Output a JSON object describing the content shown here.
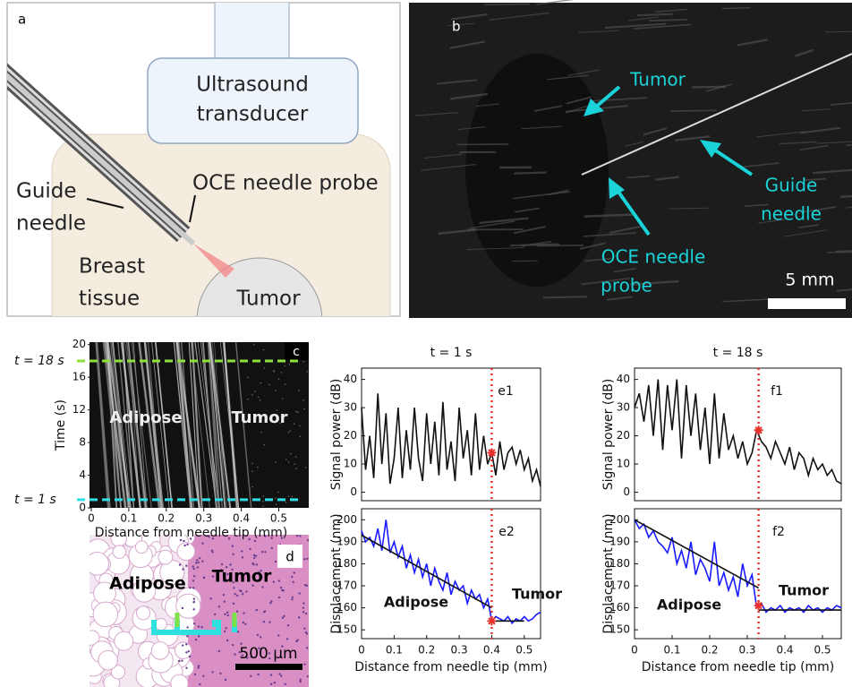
{
  "panels": {
    "a": {
      "label": "a",
      "transducer": [
        "Ultrasound",
        "transducer"
      ],
      "probe": "OCE needle probe",
      "guide": [
        "Guide",
        "needle"
      ],
      "tissue": [
        "Breast",
        "tissue"
      ],
      "tumor": "Tumor"
    },
    "b": {
      "label": "b",
      "tumor": "Tumor",
      "guide": [
        "Guide",
        "needle"
      ],
      "probe": [
        "OCE needle",
        "probe"
      ],
      "scale": "5 mm"
    },
    "d": {
      "label": "d",
      "adipose": "Adipose",
      "tumor": "Tumor",
      "scale": "500 μm"
    }
  },
  "chart_data": [
    {
      "type": "image",
      "panel": "c",
      "ylabel": "Time (s)",
      "xlabel": "Distance from needle tip (mm)",
      "xlim": [
        0,
        0.58
      ],
      "ylim": [
        0,
        20.3
      ],
      "xticks": [
        0,
        0.1,
        0.2,
        0.3,
        0.4,
        0.5
      ],
      "yticks": [
        0,
        4,
        8,
        12,
        16,
        20
      ],
      "hlines": [
        {
          "value": 18,
          "label": "t = 18 s",
          "color": "#8ee03a"
        },
        {
          "value": 1,
          "label": "t = 1 s",
          "color": "#2ee0e6"
        }
      ],
      "annotations": [
        "Adipose",
        "Tumor"
      ]
    },
    {
      "type": "line",
      "panel": "e1",
      "title": "t = 1 s",
      "ylabel": "Signal power (dB)",
      "xlim": [
        0,
        0.55
      ],
      "ylim": [
        -3,
        44
      ],
      "yticks": [
        0,
        10,
        20,
        30,
        40
      ],
      "x": [
        0,
        0.0125,
        0.025,
        0.0375,
        0.05,
        0.0625,
        0.075,
        0.0875,
        0.1,
        0.1125,
        0.125,
        0.1375,
        0.15,
        0.1625,
        0.175,
        0.1875,
        0.2,
        0.2125,
        0.225,
        0.2375,
        0.25,
        0.2625,
        0.275,
        0.2875,
        0.3,
        0.3125,
        0.325,
        0.3375,
        0.35,
        0.3625,
        0.375,
        0.3875,
        0.4,
        0.4125,
        0.425,
        0.4375,
        0.45,
        0.4625,
        0.475,
        0.4875,
        0.5,
        0.5125,
        0.525,
        0.5375,
        0.55
      ],
      "series": [
        {
          "color": "#111111",
          "values": [
            30,
            8,
            20,
            5,
            35,
            10,
            28,
            3,
            12,
            30,
            5,
            22,
            8,
            30,
            12,
            4,
            28,
            10,
            25,
            6,
            32,
            8,
            18,
            4,
            30,
            12,
            22,
            6,
            28,
            8,
            20,
            10,
            14,
            6,
            18,
            8,
            14,
            16,
            10,
            15,
            8,
            12,
            4,
            8,
            2
          ]
        }
      ],
      "vline": 0.4,
      "vline_color": "#e8322b",
      "marker": {
        "x": 0.4,
        "y": 14
      },
      "annotations": []
    },
    {
      "type": "line",
      "panel": "e2",
      "ylabel": "Displacement (nm)",
      "xlabel": "Distance from needle tip (mm)",
      "xlim": [
        0,
        0.55
      ],
      "ylim": [
        146,
        205
      ],
      "yticks": [
        150,
        160,
        170,
        180,
        190,
        200
      ],
      "xticks": [
        0,
        0.1,
        0.2,
        0.3,
        0.4,
        0.5
      ],
      "x": [
        0,
        0.0125,
        0.025,
        0.0375,
        0.05,
        0.0625,
        0.075,
        0.0875,
        0.1,
        0.1125,
        0.125,
        0.1375,
        0.15,
        0.1625,
        0.175,
        0.1875,
        0.2,
        0.2125,
        0.225,
        0.2375,
        0.25,
        0.2625,
        0.275,
        0.2875,
        0.3,
        0.3125,
        0.325,
        0.3375,
        0.35,
        0.3625,
        0.375,
        0.3875,
        0.4,
        0.4125,
        0.425,
        0.4375,
        0.45,
        0.4625,
        0.475,
        0.4875,
        0.5,
        0.5125,
        0.525,
        0.5375,
        0.55
      ],
      "series": [
        {
          "color": "#1a1aff",
          "values": [
            195,
            190,
            192,
            188,
            196,
            186,
            200,
            185,
            190,
            183,
            188,
            178,
            184,
            176,
            182,
            174,
            180,
            170,
            178,
            172,
            168,
            176,
            166,
            172,
            168,
            170,
            162,
            168,
            164,
            166,
            160,
            164,
            154,
            156,
            155,
            154,
            156,
            153,
            155,
            154,
            156,
            154,
            155,
            157,
            158
          ]
        }
      ],
      "fits": [
        {
          "x": [
            0,
            0.4
          ],
          "y": [
            193,
            160
          ]
        },
        {
          "x": [
            0.4,
            0.5
          ],
          "y": [
            154,
            154
          ]
        }
      ],
      "fit_color": "#111111",
      "vline": 0.4,
      "vline_color": "#e8322b",
      "marker": {
        "x": 0.4,
        "y": 154
      },
      "annotations": [
        "Adipose",
        "Tumor"
      ]
    },
    {
      "type": "line",
      "panel": "f1",
      "title": "t = 18 s",
      "ylabel": "Signal power (dB)",
      "xlim": [
        0,
        0.55
      ],
      "ylim": [
        -3,
        44
      ],
      "yticks": [
        0,
        10,
        20,
        30,
        40
      ],
      "x": [
        0,
        0.0125,
        0.025,
        0.0375,
        0.05,
        0.0625,
        0.075,
        0.0875,
        0.1,
        0.1125,
        0.125,
        0.1375,
        0.15,
        0.1625,
        0.175,
        0.1875,
        0.2,
        0.2125,
        0.225,
        0.2375,
        0.25,
        0.2625,
        0.275,
        0.2875,
        0.3,
        0.3125,
        0.325,
        0.3375,
        0.35,
        0.3625,
        0.375,
        0.3875,
        0.4,
        0.4125,
        0.425,
        0.4375,
        0.45,
        0.4625,
        0.475,
        0.4875,
        0.5,
        0.5125,
        0.525,
        0.5375,
        0.55
      ],
      "series": [
        {
          "color": "#111111",
          "values": [
            30,
            35,
            25,
            38,
            20,
            40,
            15,
            38,
            22,
            40,
            12,
            38,
            20,
            35,
            15,
            30,
            10,
            35,
            12,
            28,
            15,
            20,
            12,
            18,
            10,
            14,
            22,
            18,
            16,
            12,
            18,
            14,
            10,
            16,
            8,
            14,
            12,
            6,
            12,
            8,
            10,
            6,
            8,
            4,
            3
          ]
        }
      ],
      "vline": 0.33,
      "vline_color": "#e8322b",
      "marker": {
        "x": 0.33,
        "y": 22
      },
      "annotations": []
    },
    {
      "type": "line",
      "panel": "f2",
      "ylabel": "Displacement (nm)",
      "xlabel": "Distance from needle tip (mm)",
      "xlim": [
        0,
        0.55
      ],
      "ylim": [
        146,
        205
      ],
      "yticks": [
        150,
        160,
        170,
        180,
        190,
        200
      ],
      "xticks": [
        0,
        0.1,
        0.2,
        0.3,
        0.4,
        0.5
      ],
      "x": [
        0,
        0.0125,
        0.025,
        0.0375,
        0.05,
        0.0625,
        0.075,
        0.0875,
        0.1,
        0.1125,
        0.125,
        0.1375,
        0.15,
        0.1625,
        0.175,
        0.1875,
        0.2,
        0.2125,
        0.225,
        0.2375,
        0.25,
        0.2625,
        0.275,
        0.2875,
        0.3,
        0.3125,
        0.325,
        0.3375,
        0.35,
        0.3625,
        0.375,
        0.3875,
        0.4,
        0.4125,
        0.425,
        0.4375,
        0.45,
        0.4625,
        0.475,
        0.4875,
        0.5,
        0.5125,
        0.525,
        0.5375,
        0.55
      ],
      "series": [
        {
          "color": "#1a1aff",
          "values": [
            200,
            196,
            198,
            192,
            195,
            190,
            188,
            185,
            192,
            180,
            186,
            178,
            190,
            175,
            182,
            178,
            172,
            190,
            170,
            176,
            168,
            174,
            165,
            180,
            170,
            175,
            160,
            162,
            158,
            160,
            159,
            161,
            158,
            160,
            159,
            160,
            158,
            161,
            159,
            160,
            158,
            160,
            159,
            161,
            160
          ]
        }
      ],
      "fits": [
        {
          "x": [
            0,
            0.33
          ],
          "y": [
            200,
            169
          ]
        },
        {
          "x": [
            0.33,
            0.55
          ],
          "y": [
            159,
            159
          ]
        }
      ],
      "fit_color": "#111111",
      "vline": 0.33,
      "vline_color": "#e8322b",
      "marker": {
        "x": 0.33,
        "y": 161
      },
      "annotations": [
        "Adipose",
        "Tumor"
      ]
    }
  ]
}
